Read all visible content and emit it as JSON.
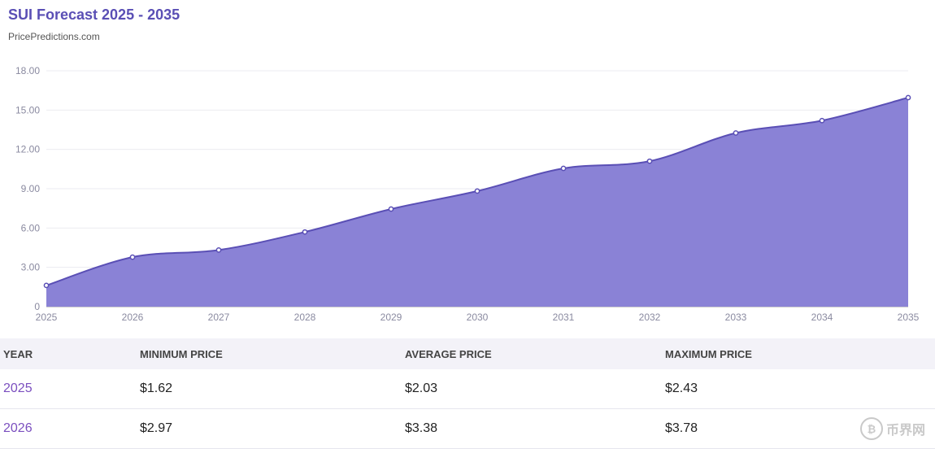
{
  "header": {
    "title": "SUI Forecast 2025 - 2035",
    "source": "PricePredictions.com"
  },
  "chart_data": {
    "type": "area",
    "title": "SUI Forecast 2025 - 2035",
    "x": [
      "2025",
      "2026",
      "2027",
      "2028",
      "2029",
      "2030",
      "2031",
      "2032",
      "2033",
      "2034",
      "2035"
    ],
    "series": [
      {
        "values": [
          1.62,
          3.78,
          4.32,
          5.7,
          7.45,
          8.82,
          10.55,
          11.1,
          13.25,
          14.2,
          15.95
        ]
      }
    ],
    "yticks": [
      "0",
      "3.00",
      "6.00",
      "9.00",
      "12.00",
      "15.00",
      "18.00"
    ],
    "ylim": [
      0,
      18
    ],
    "grid": true,
    "colors": {
      "fill": "#8a82d6",
      "line": "#5a4fb5"
    }
  },
  "table": {
    "headers": [
      "YEAR",
      "MINIMUM PRICE",
      "AVERAGE PRICE",
      "MAXIMUM PRICE"
    ],
    "rows": [
      [
        "2025",
        "$1.62",
        "$2.03",
        "$2.43"
      ],
      [
        "2026",
        "$2.97",
        "$3.38",
        "$3.78"
      ]
    ]
  },
  "watermark": {
    "glyph": "₿",
    "text": "币界网"
  }
}
